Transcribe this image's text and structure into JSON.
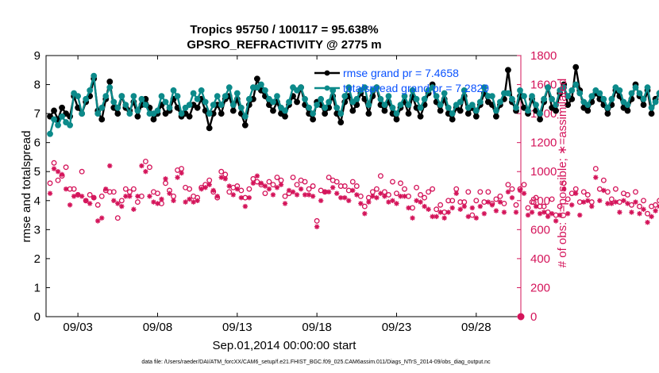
{
  "chart_data": {
    "type": "line",
    "title": "Tropics 95750 / 100117 = 95.638%",
    "subtitle": "GPSRO_REFRACTIVITY @ 2775 m",
    "xlabel": "Sep.01,2014 00:00:00 start",
    "ylabel_left": "rmse and totalspread",
    "ylabel_right": "# of obs: o=possible; ∗=assimilated",
    "footer": "data file: /Users/raeder/DAI/ATM_forcXX/CAM6_setup/f.e21.FHIST_BGC.f09_025.CAM6assim.011/Diags_NTrS_2014-09/obs_diag_output.nc",
    "xlim": [
      1.0,
      30.8
    ],
    "ylim_left": [
      0,
      9
    ],
    "ylim_right": [
      0,
      1800
    ],
    "x_ticks": [
      3,
      8,
      13,
      18,
      23,
      28
    ],
    "x_tick_labels": [
      "09/03",
      "09/08",
      "09/13",
      "09/18",
      "09/23",
      "09/28"
    ],
    "y_ticks_left": [
      "0",
      "1",
      "2",
      "3",
      "4",
      "5",
      "6",
      "7",
      "8",
      "9"
    ],
    "y_ticks_right": [
      "0",
      "200",
      "400",
      "600",
      "800",
      "1000",
      "1200",
      "1400",
      "1600",
      "1800"
    ],
    "legend": [
      {
        "name": "rmse",
        "label": "rmse grand pr = 7.4658"
      },
      {
        "name": "totalspread",
        "label": "totalspread grand pr = 7.2829"
      }
    ],
    "colors": {
      "rmse": "#000000",
      "totalspread": "#0c8a8a",
      "obs": "#d4145a",
      "legend_text": "#0a52ff"
    },
    "x_start": 1.25,
    "x_step": 0.25,
    "series": [
      {
        "name": "rmse",
        "values": [
          6.9,
          7.1,
          6.8,
          7.2,
          7.0,
          6.9,
          7.6,
          7.2,
          7.0,
          7.4,
          7.6,
          8.2,
          7.1,
          6.8,
          7.5,
          8.1,
          7.2,
          7.0,
          7.6,
          7.2,
          7.1,
          7.4,
          6.9,
          7.3,
          7.5,
          7.2,
          6.8,
          7.0,
          7.3,
          7.0,
          7.1,
          7.5,
          7.2,
          6.9,
          7.0,
          6.9,
          7.3,
          7.2,
          7.5,
          7.1,
          6.5,
          7.0,
          7.3,
          7.0,
          7.5,
          7.6,
          7.1,
          7.5,
          7.0,
          6.6,
          7.3,
          7.5,
          8.2,
          7.8,
          7.6,
          7.3,
          7.1,
          7.4,
          7.0,
          6.9,
          7.3,
          7.6,
          7.4,
          7.9,
          7.3,
          7.0,
          6.8,
          7.4,
          7.3,
          7.0,
          7.2,
          7.6,
          7.0,
          6.7,
          7.4,
          7.6,
          7.1,
          7.3,
          7.7,
          7.5,
          7.0,
          7.6,
          7.9,
          7.3,
          7.1,
          7.4,
          7.0,
          6.8,
          7.2,
          7.4,
          7.0,
          7.6,
          7.2,
          6.9,
          7.3,
          7.7,
          8.0,
          7.4,
          7.1,
          7.5,
          7.0,
          6.8,
          7.2,
          7.1,
          7.6,
          7.0,
          7.2,
          6.9,
          7.3,
          7.7,
          7.4,
          7.3,
          6.9,
          7.3,
          7.5,
          8.5,
          7.4,
          7.1,
          7.6,
          7.2,
          7.0,
          7.5,
          7.1,
          6.8,
          7.4,
          7.9,
          7.2,
          7.1,
          7.7,
          8.0,
          7.3,
          7.5,
          8.6,
          7.8,
          7.2,
          7.1,
          7.4,
          7.7,
          7.5,
          7.3,
          7.0,
          7.3,
          7.8,
          7.6,
          7.2,
          7.1,
          7.5,
          8.0,
          7.6,
          7.3,
          7.8,
          7.0,
          7.5,
          7.7,
          8.7,
          7.1,
          7.4,
          8.3,
          7.6,
          8.8,
          7.9,
          7.2,
          8.1,
          7.4,
          7.1,
          7.6,
          8.6,
          7.8,
          7.1,
          7.5,
          8.5,
          7.0,
          7.3,
          7.4,
          8.3,
          7.0,
          7.9,
          7.2,
          7.0,
          7.6,
          7.1,
          7.0,
          8.2,
          7.3,
          7.4,
          7.3,
          7.1,
          7.5,
          7.0,
          6.9,
          7.3,
          7.0,
          7.3,
          7.6,
          7.3,
          6.8,
          7.4,
          7.1,
          7.2,
          7.3,
          7.2,
          7.6,
          7.8,
          7.3,
          7.5,
          7.0,
          7.3,
          6.9,
          7.6,
          7.2,
          7.1,
          6.8,
          7.3,
          7.5,
          7.9,
          7.4,
          7.0,
          7.4,
          7.7,
          7.3,
          8.3
        ]
      },
      {
        "name": "totalspread",
        "values": [
          6.3,
          6.8,
          6.6,
          6.9,
          6.7,
          6.6,
          7.7,
          7.6,
          7.0,
          7.5,
          7.8,
          8.3,
          7.0,
          7.2,
          7.6,
          7.9,
          7.4,
          7.2,
          7.6,
          7.3,
          7.0,
          7.6,
          7.1,
          7.5,
          7.3,
          7.0,
          7.0,
          7.1,
          7.6,
          7.4,
          7.2,
          7.8,
          7.6,
          7.0,
          7.2,
          7.3,
          7.7,
          7.5,
          7.8,
          7.4,
          7.0,
          7.3,
          7.6,
          7.3,
          7.6,
          7.9,
          7.3,
          7.7,
          7.2,
          6.9,
          7.5,
          7.9,
          7.9,
          8.0,
          7.8,
          7.5,
          7.4,
          7.6,
          7.2,
          7.1,
          7.4,
          7.9,
          7.8,
          7.9,
          7.5,
          7.2,
          7.0,
          7.3,
          7.5,
          7.2,
          7.4,
          7.8,
          7.2,
          7.0,
          7.6,
          7.9,
          7.4,
          7.5,
          7.8,
          7.9,
          7.3,
          7.8,
          7.9,
          7.5,
          7.3,
          7.6,
          7.2,
          7.0,
          7.3,
          7.6,
          7.3,
          7.8,
          7.5,
          7.2,
          7.5,
          7.8,
          7.9,
          7.6,
          7.3,
          7.7,
          7.2,
          7.0,
          7.3,
          7.4,
          7.8,
          7.2,
          7.3,
          7.1,
          7.4,
          7.9,
          7.6,
          7.6,
          7.1,
          7.4,
          7.7,
          7.7,
          7.5,
          7.2,
          7.8,
          7.6,
          7.1,
          7.6,
          7.3,
          7.0,
          7.5,
          7.9,
          7.5,
          7.3,
          7.8,
          7.9,
          7.6,
          7.8,
          8.0,
          7.7,
          7.4,
          7.3,
          7.6,
          7.8,
          7.7,
          7.5,
          7.2,
          7.5,
          7.9,
          7.8,
          7.4,
          7.3,
          7.7,
          7.9,
          7.7,
          7.5,
          7.9,
          7.2,
          7.4,
          7.7,
          7.8,
          7.3,
          7.5,
          7.8,
          7.4,
          7.9,
          7.8,
          7.4,
          7.9,
          7.6,
          7.3,
          7.8,
          7.9,
          7.8,
          7.3,
          7.6,
          7.8,
          7.2,
          7.5,
          7.6,
          7.9,
          7.2,
          7.7,
          7.4,
          7.2,
          7.8,
          7.3,
          7.1,
          7.8,
          7.4,
          7.6,
          7.5,
          7.2,
          7.7,
          7.3,
          7.1,
          7.5,
          7.2,
          7.4,
          7.8,
          7.4,
          7.0,
          7.5,
          7.3,
          7.4,
          7.5,
          7.3,
          7.7,
          7.8,
          7.5,
          7.6,
          7.2,
          7.5,
          7.1,
          7.7,
          7.4,
          7.2,
          7.0,
          7.4,
          7.6,
          7.9,
          7.5,
          7.2,
          7.5,
          7.8,
          7.0,
          6.6
        ]
      },
      {
        "name": "obs_possible",
        "axis": "right",
        "marker": "o",
        "values": [
          920,
          1060,
          940,
          970,
          1030,
          880,
          880,
          840,
          1000,
          800,
          840,
          820,
          770,
          830,
          870,
          860,
          860,
          680,
          800,
          880,
          860,
          880,
          790,
          830,
          1070,
          1030,
          860,
          850,
          780,
          920,
          870,
          830,
          1010,
          1020,
          890,
          880,
          830,
          820,
          890,
          910,
          940,
          860,
          820,
          1000,
          980,
          860,
          890,
          900,
          870,
          820,
          880,
          950,
          930,
          910,
          850,
          930,
          910,
          960,
          940,
          830,
          850,
          960,
          910,
          940,
          930,
          880,
          900,
          660,
          870,
          860,
          960,
          940,
          930,
          900,
          900,
          870,
          930,
          900,
          830,
          760,
          820,
          860,
          880,
          970,
          860,
          840,
          930,
          850,
          920,
          880,
          830,
          750,
          890,
          840,
          820,
          860,
          880,
          740,
          770,
          720,
          800,
          800,
          880,
          790,
          790,
          860,
          700,
          800,
          860,
          790,
          860,
          780,
          810,
          830,
          780,
          910,
          880,
          770,
          880,
          910,
          750,
          790,
          820,
          760,
          760,
          720,
          810,
          700,
          760,
          920,
          810,
          850,
          880,
          790,
          860,
          840,
          790,
          1020,
          880,
          940,
          860,
          810,
          880,
          790,
          850,
          840,
          770,
          860,
          760,
          800,
          710,
          760,
          770,
          800,
          760,
          720,
          840,
          800,
          820,
          790,
          810,
          750,
          800,
          930,
          900,
          880,
          900,
          860,
          950,
          920,
          900,
          1000,
          1000,
          930,
          860,
          890,
          940,
          860,
          990,
          1000,
          900,
          870,
          1020,
          1010,
          930,
          900,
          860,
          960,
          930,
          870,
          780,
          920,
          690,
          680,
          870,
          790,
          730,
          830,
          770,
          900,
          910,
          780,
          880,
          990
        ]
      },
      {
        "name": "obs_assimilated",
        "axis": "right",
        "marker": "*",
        "values": [
          850,
          1020,
          1000,
          980,
          880,
          770,
          830,
          840,
          830,
          800,
          780,
          820,
          660,
          680,
          880,
          1040,
          800,
          780,
          760,
          830,
          830,
          740,
          830,
          1040,
          1000,
          830,
          790,
          780,
          810,
          950,
          850,
          800,
          960,
          990,
          790,
          810,
          790,
          800,
          880,
          890,
          910,
          870,
          830,
          960,
          950,
          900,
          840,
          880,
          820,
          760,
          820,
          920,
          970,
          920,
          900,
          880,
          840,
          890,
          910,
          780,
          870,
          860,
          840,
          880,
          840,
          840,
          830,
          620,
          800,
          860,
          860,
          890,
          850,
          820,
          820,
          800,
          870,
          840,
          780,
          710,
          790,
          830,
          820,
          850,
          830,
          790,
          800,
          780,
          830,
          830,
          750,
          680,
          800,
          790,
          760,
          740,
          690,
          690,
          720,
          680,
          720,
          750,
          850,
          740,
          760,
          690,
          750,
          680,
          760,
          710,
          790,
          770,
          730,
          790,
          720,
          860,
          820,
          720,
          870,
          850,
          700,
          720,
          760,
          710,
          720,
          690,
          710,
          660,
          700,
          880,
          710,
          770,
          850,
          700,
          790,
          800,
          760,
          960,
          800,
          870,
          780,
          780,
          790,
          720,
          800,
          780,
          720,
          790,
          710,
          740,
          650,
          690,
          730,
          760,
          690,
          700,
          770,
          760,
          760,
          710,
          730,
          750,
          790,
          860,
          840,
          810,
          850,
          800,
          890,
          870,
          850,
          950,
          960,
          870,
          810,
          830,
          900,
          800,
          950,
          900,
          860,
          810,
          960,
          990,
          840,
          840,
          770,
          900,
          880,
          770,
          710,
          760,
          620,
          610,
          730,
          780,
          680,
          800,
          730,
          840,
          860,
          730,
          750,
          850
        ]
      }
    ],
    "corner_point": {
      "x": 30.8,
      "y_right": 0
    }
  }
}
